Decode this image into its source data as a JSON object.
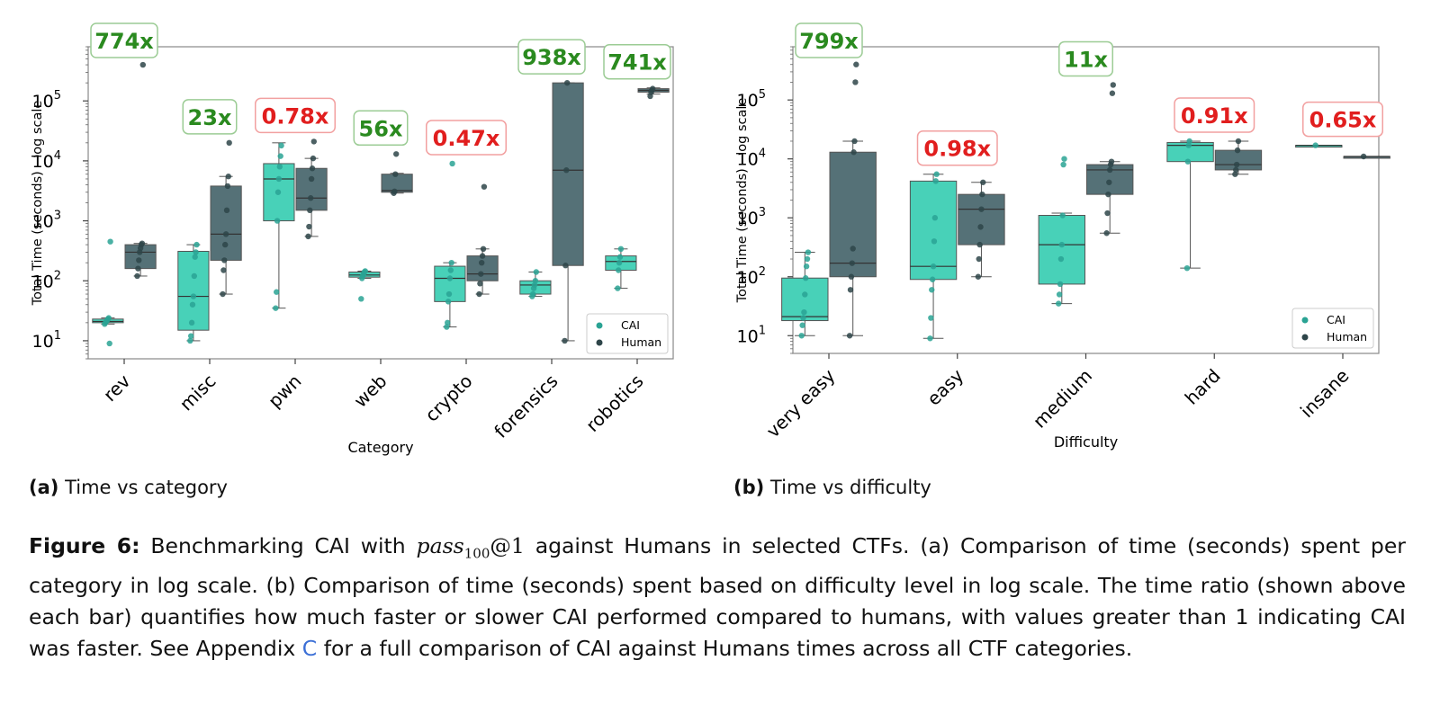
{
  "chart_data": [
    {
      "type": "box",
      "subcaption_label": "(a)",
      "subcaption_text": "Time vs category",
      "xlabel": "Category",
      "ylabel": "Total Time (seconds) - log scale",
      "yscale": "log",
      "ylim": [
        5,
        800000
      ],
      "categories": [
        "rev",
        "misc",
        "pwn",
        "web",
        "crypto",
        "forensics",
        "robotics"
      ],
      "ratios": [
        "774x",
        "23x",
        "0.78x",
        "56x",
        "0.47x",
        "938x",
        "741x"
      ],
      "ratio_faster": [
        true,
        true,
        false,
        true,
        false,
        true,
        true
      ],
      "legend": [
        "CAI",
        "Human"
      ],
      "legend_position": "lower right",
      "series": [
        {
          "name": "CAI",
          "boxes": [
            {
              "min": 19,
              "q1": 20,
              "median": 21,
              "q3": 23,
              "max": 24,
              "points": [
                19,
                20,
                21,
                22,
                23,
                24,
                9,
                450
              ]
            },
            {
              "min": 10,
              "q1": 15,
              "median": 55,
              "q3": 310,
              "max": 400,
              "points": [
                10,
                12,
                20,
                40,
                55,
                120,
                250,
                300,
                400
              ]
            },
            {
              "min": 35,
              "q1": 1000,
              "median": 5000,
              "q3": 9000,
              "max": 20000,
              "points": [
                35,
                65,
                1000,
                3000,
                5000,
                8000,
                12000,
                18000
              ]
            },
            {
              "min": 110,
              "q1": 115,
              "median": 125,
              "q3": 140,
              "max": 145,
              "points": [
                50,
                110,
                120,
                130,
                140,
                145
              ]
            },
            {
              "min": 17,
              "q1": 45,
              "median": 110,
              "q3": 175,
              "max": 200,
              "points": [
                17,
                20,
                45,
                60,
                110,
                150,
                200,
                9000
              ]
            },
            {
              "min": 55,
              "q1": 60,
              "median": 85,
              "q3": 100,
              "max": 140,
              "points": [
                55,
                60,
                75,
                85,
                100,
                140
              ]
            },
            {
              "min": 75,
              "q1": 150,
              "median": 210,
              "q3": 260,
              "max": 340,
              "points": [
                75,
                150,
                200,
                250,
                340
              ]
            }
          ]
        },
        {
          "name": "Human",
          "boxes": [
            {
              "min": 120,
              "q1": 160,
              "median": 300,
              "q3": 400,
              "max": 420,
              "points": [
                120,
                160,
                220,
                300,
                350,
                400,
                420,
                400000
              ]
            },
            {
              "min": 60,
              "q1": 220,
              "median": 600,
              "q3": 3800,
              "max": 5500,
              "points": [
                60,
                150,
                220,
                400,
                600,
                1500,
                3800,
                5500,
                20000
              ]
            },
            {
              "min": 550,
              "q1": 1500,
              "median": 2400,
              "q3": 7500,
              "max": 11000,
              "points": [
                550,
                800,
                1500,
                2400,
                5000,
                7500,
                11000,
                21000
              ]
            },
            {
              "min": 2900,
              "q1": 3000,
              "median": 3200,
              "q3": 6000,
              "max": 6200,
              "points": [
                2900,
                3100,
                6000,
                13000
              ]
            },
            {
              "min": 60,
              "q1": 100,
              "median": 130,
              "q3": 260,
              "max": 340,
              "points": [
                60,
                90,
                130,
                200,
                260,
                340,
                3700
              ]
            },
            {
              "min": 10,
              "q1": 180,
              "median": 7000,
              "q3": 200000,
              "max": 200000,
              "points": [
                10,
                180,
                7000,
                200000
              ]
            },
            {
              "min": 130000,
              "q1": 140000,
              "median": 150000,
              "q3": 160000,
              "max": 165000,
              "points": [
                120000,
                140000,
                150000,
                160000
              ]
            }
          ]
        }
      ]
    },
    {
      "type": "box",
      "subcaption_label": "(b)",
      "subcaption_text": "Time vs difficulty",
      "xlabel": "Difficulty",
      "ylabel": "Total Time (seconds) - log scale",
      "yscale": "log",
      "ylim": [
        5,
        800000
      ],
      "categories": [
        "very easy",
        "easy",
        "medium",
        "hard",
        "insane"
      ],
      "ratios": [
        "799x",
        "0.98x",
        "11x",
        "0.91x",
        "0.65x"
      ],
      "ratio_faster": [
        true,
        false,
        true,
        false,
        false
      ],
      "legend": [
        "CAI",
        "Human"
      ],
      "legend_position": "lower right",
      "series": [
        {
          "name": "CAI",
          "boxes": [
            {
              "min": 10,
              "q1": 18,
              "median": 21,
              "q3": 95,
              "max": 260,
              "points": [
                10,
                15,
                20,
                25,
                50,
                95,
                150,
                200,
                260
              ]
            },
            {
              "min": 9,
              "q1": 90,
              "median": 150,
              "q3": 4200,
              "max": 5500,
              "points": [
                9,
                20,
                60,
                90,
                150,
                400,
                1000,
                4200,
                5500
              ]
            },
            {
              "min": 35,
              "q1": 75,
              "median": 350,
              "q3": 1100,
              "max": 1200,
              "points": [
                35,
                50,
                75,
                200,
                350,
                1100,
                8000,
                10000
              ]
            },
            {
              "min": 140,
              "q1": 9000,
              "median": 17000,
              "q3": 19000,
              "max": 20000,
              "points": [
                140,
                9000,
                17000,
                20000
              ]
            },
            {
              "min": 17000,
              "q1": 17000,
              "median": 17000,
              "q3": 17000,
              "max": 17000,
              "points": [
                17000
              ]
            }
          ]
        },
        {
          "name": "Human",
          "boxes": [
            {
              "min": 10,
              "q1": 100,
              "median": 170,
              "q3": 13000,
              "max": 20000,
              "points": [
                10,
                60,
                100,
                170,
                300,
                13000,
                20000,
                200000,
                400000
              ]
            },
            {
              "min": 100,
              "q1": 350,
              "median": 1400,
              "q3": 2500,
              "max": 4000,
              "points": [
                100,
                200,
                350,
                700,
                1400,
                2500,
                4000
              ]
            },
            {
              "min": 550,
              "q1": 2500,
              "median": 6500,
              "q3": 8000,
              "max": 9000,
              "points": [
                550,
                1200,
                2500,
                4000,
                6500,
                8000,
                9000,
                130000,
                180000
              ]
            },
            {
              "min": 5500,
              "q1": 6500,
              "median": 8000,
              "q3": 14000,
              "max": 20000,
              "points": [
                5500,
                6500,
                8000,
                14000,
                20000
              ]
            },
            {
              "min": 11000,
              "q1": 11000,
              "median": 11000,
              "q3": 11000,
              "max": 11000,
              "points": [
                11000
              ]
            }
          ]
        }
      ]
    }
  ],
  "colors": {
    "cai_fill": "#48d1b8",
    "cai_point": "#2aa394",
    "human_fill": "#557177",
    "human_point": "#2e4549",
    "faster": "#2a8a1f",
    "slower": "#e11e1e"
  },
  "caption": {
    "label": "Figure 6:",
    "part1": "Benchmarking CAI with",
    "math_main": "pass",
    "math_sub": "100",
    "math_tail": "@1",
    "part2": "against Humans in selected CTFs. (a) Comparison of time (seconds) spent per category in log scale. (b) Comparison of time (seconds) spent based on difficulty level in log scale. The time ratio (shown above each bar) quantifies how much faster or slower CAI performed compared to humans, with values greater than 1 indicating CAI was faster. See Appendix",
    "link": "C",
    "part3": "for a full comparison of CAI against Humans times across all CTF categories."
  }
}
